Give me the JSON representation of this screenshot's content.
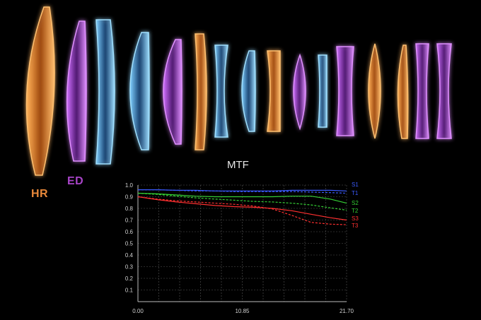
{
  "lens_labels": {
    "hr": "HR",
    "ed": "ED"
  },
  "lens_colors": {
    "orange": "#f0902a",
    "purple": "#b04ad8",
    "blue": "#3aa0e0"
  },
  "lenses": [
    {
      "color": "orange",
      "shape": "bi-convex"
    },
    {
      "color": "purple",
      "shape": "convex"
    },
    {
      "color": "blue",
      "shape": "block"
    },
    {
      "color": "blue",
      "shape": "convex"
    },
    {
      "color": "purple",
      "shape": "convex"
    },
    {
      "color": "orange",
      "shape": "concave"
    },
    {
      "color": "blue",
      "shape": "concave"
    },
    {
      "color": "blue",
      "shape": "convex"
    },
    {
      "color": "orange",
      "shape": "block"
    },
    {
      "color": "purple",
      "shape": "bi-convex"
    },
    {
      "color": "blue",
      "shape": "block"
    },
    {
      "color": "purple",
      "shape": "concave"
    },
    {
      "color": "orange",
      "shape": "bi-convex"
    },
    {
      "color": "orange",
      "shape": "convex"
    },
    {
      "color": "purple",
      "shape": "concave"
    },
    {
      "color": "purple",
      "shape": "concave"
    }
  ],
  "chart_data": {
    "type": "line",
    "title": "MTF",
    "xlabel": "",
    "ylabel": "",
    "xlim": [
      0,
      21.7
    ],
    "ylim": [
      0,
      1.0
    ],
    "x_ticks": [
      "0.00",
      "10.85",
      "21.70"
    ],
    "y_ticks": [
      "0.1",
      "0.2",
      "0.3",
      "0.4",
      "0.5",
      "0.6",
      "0.7",
      "0.8",
      "0.9",
      "1.0"
    ],
    "grid": true,
    "legend_position": "right",
    "series": [
      {
        "name": "S1",
        "color": "#3b5bff",
        "dash": false,
        "x": [
          0,
          2,
          4,
          6,
          8,
          10,
          12,
          14,
          16,
          18,
          20,
          21.7
        ],
        "y": [
          0.96,
          0.96,
          0.955,
          0.955,
          0.95,
          0.95,
          0.95,
          0.95,
          0.955,
          0.955,
          0.955,
          0.95
        ]
      },
      {
        "name": "T1",
        "color": "#3b5bff",
        "dash": true,
        "x": [
          0,
          2,
          4,
          6,
          8,
          10,
          12,
          14,
          16,
          18,
          20,
          21.7
        ],
        "y": [
          0.96,
          0.96,
          0.955,
          0.95,
          0.95,
          0.945,
          0.945,
          0.945,
          0.945,
          0.94,
          0.935,
          0.93
        ]
      },
      {
        "name": "S2",
        "color": "#35d035",
        "dash": false,
        "x": [
          0,
          2,
          4,
          6,
          8,
          10,
          12,
          14,
          16,
          18,
          20,
          21.7
        ],
        "y": [
          0.93,
          0.925,
          0.915,
          0.905,
          0.9,
          0.9,
          0.9,
          0.9,
          0.905,
          0.905,
          0.88,
          0.845
        ]
      },
      {
        "name": "T2",
        "color": "#35d035",
        "dash": true,
        "x": [
          0,
          2,
          4,
          6,
          8,
          10,
          12,
          14,
          16,
          18,
          20,
          21.7
        ],
        "y": [
          0.93,
          0.92,
          0.905,
          0.89,
          0.88,
          0.87,
          0.86,
          0.855,
          0.845,
          0.83,
          0.805,
          0.785
        ]
      },
      {
        "name": "S3",
        "color": "#ff3030",
        "dash": false,
        "x": [
          0,
          2,
          4,
          6,
          8,
          10,
          12,
          14,
          16,
          18,
          20,
          21.7
        ],
        "y": [
          0.9,
          0.875,
          0.855,
          0.84,
          0.825,
          0.815,
          0.81,
          0.8,
          0.78,
          0.75,
          0.72,
          0.7
        ]
      },
      {
        "name": "T3",
        "color": "#ff3030",
        "dash": true,
        "x": [
          0,
          2,
          4,
          6,
          8,
          10,
          12,
          14,
          16,
          18,
          20,
          21.7
        ],
        "y": [
          0.9,
          0.88,
          0.865,
          0.855,
          0.845,
          0.835,
          0.82,
          0.795,
          0.74,
          0.68,
          0.665,
          0.66
        ]
      }
    ]
  }
}
